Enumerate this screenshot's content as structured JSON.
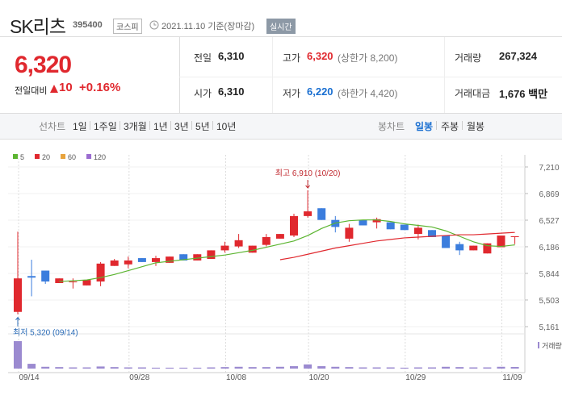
{
  "header": {
    "name": "SK리츠",
    "code": "395400",
    "market": "코스피",
    "date": "2021.11.10 기준(장마감)",
    "realtime": "실시간"
  },
  "quote": {
    "price": "6,320",
    "change_label": "전일대비",
    "change": "10",
    "change_pct": "+0.16%",
    "color": "#e0282e"
  },
  "stats": [
    {
      "label": "전일",
      "value": "6,310",
      "color": "#222222"
    },
    {
      "label": "고가",
      "value": "6,320",
      "note": "(상한가 8,200)",
      "color": "#e0282e"
    },
    {
      "label": "거래량",
      "value": "267,324",
      "color": "#222222"
    },
    {
      "label": "시가",
      "value": "6,310",
      "color": "#222222"
    },
    {
      "label": "저가",
      "value": "6,220",
      "note": "(하한가 4,420)",
      "color": "#1a6fd1"
    },
    {
      "label": "거래대금",
      "value": "1,676 백만",
      "color": "#222222"
    }
  ],
  "tabs": {
    "line_label": "선차트",
    "line_periods": [
      "1일",
      "1주일",
      "3개월",
      "1년",
      "3년",
      "5년",
      "10년"
    ],
    "candle_label": "봉차트",
    "candle_periods": [
      "일봉",
      "주봉",
      "월봉"
    ],
    "selected_candle_period": 0
  },
  "chart_data": {
    "type": "candlestick",
    "categories": [
      "09/14",
      null,
      null,
      null,
      null,
      null,
      null,
      null,
      "09/28",
      null,
      null,
      null,
      null,
      null,
      null,
      "10/08",
      null,
      null,
      null,
      null,
      null,
      "10/20",
      null,
      null,
      null,
      null,
      null,
      null,
      "10/29",
      null,
      null,
      null,
      null,
      null,
      null,
      "11/09",
      null
    ],
    "open": [
      5350,
      5810,
      5880,
      5720,
      5730,
      5690,
      5740,
      5940,
      5960,
      6040,
      5990,
      5980,
      6090,
      6010,
      6030,
      6140,
      6190,
      6110,
      6210,
      6290,
      6330,
      6580,
      6680,
      6530,
      6290,
      6530,
      6500,
      6500,
      6470,
      6350,
      6400,
      6330,
      6220,
      6140,
      6100,
      6180,
      6310
    ],
    "high": [
      6380,
      6020,
      5880,
      5780,
      5780,
      5760,
      5990,
      6030,
      6060,
      6040,
      6070,
      6060,
      6090,
      6090,
      6140,
      6250,
      6350,
      6200,
      6350,
      6350,
      6610,
      6910,
      6680,
      6580,
      6480,
      6530,
      6560,
      6500,
      6470,
      6470,
      6400,
      6330,
      6250,
      6200,
      6230,
      6330,
      6320
    ],
    "low": [
      5320,
      5550,
      5710,
      5720,
      5650,
      5690,
      5680,
      5940,
      5910,
      5990,
      5940,
      5980,
      6010,
      6010,
      6030,
      6110,
      6170,
      6110,
      6190,
      6290,
      6310,
      6560,
      6530,
      6370,
      6250,
      6460,
      6420,
      6410,
      6400,
      6280,
      6310,
      6170,
      6080,
      6140,
      6100,
      6180,
      6220
    ],
    "close": [
      5780,
      5790,
      5740,
      5780,
      5740,
      5760,
      5970,
      6010,
      6010,
      5990,
      6040,
      6060,
      6010,
      6090,
      6140,
      6200,
      6270,
      6200,
      6310,
      6350,
      6580,
      6640,
      6530,
      6440,
      6430,
      6460,
      6540,
      6410,
      6400,
      6430,
      6310,
      6170,
      6140,
      6200,
      6230,
      6330,
      6320
    ],
    "up_color": "#e0282e",
    "down_color": "#3b7ddd",
    "ylim": [
      5161,
      7210
    ],
    "yticks": [
      {
        "value": 5161,
        "label": "5,161"
      },
      {
        "value": 5503,
        "label": "5,503"
      },
      {
        "value": 5844,
        "label": "5,844"
      },
      {
        "value": 6186,
        "label": "6,186"
      },
      {
        "value": 6527,
        "label": "6,527"
      },
      {
        "value": 6869,
        "label": "6,869"
      },
      {
        "value": 7210,
        "label": "7,210"
      }
    ],
    "grid": true,
    "moving_averages": [
      {
        "name": "5",
        "color": "#5cb531",
        "values": [
          null,
          null,
          null,
          5740,
          5750,
          5760,
          5790,
          5830,
          5880,
          5930,
          5980,
          6000,
          6020,
          6040,
          6060,
          6080,
          6110,
          6140,
          6180,
          6220,
          6260,
          6330,
          6420,
          6490,
          6520,
          6530,
          6530,
          6510,
          6480,
          6460,
          6440,
          6390,
          6320,
          6250,
          6200,
          6190,
          6210
        ]
      },
      {
        "name": "20",
        "color": "#e0282e",
        "values": [
          null,
          null,
          null,
          null,
          null,
          null,
          null,
          null,
          null,
          null,
          null,
          null,
          null,
          null,
          null,
          null,
          null,
          null,
          null,
          6020,
          6050,
          6090,
          6130,
          6170,
          6200,
          6230,
          6260,
          6280,
          6300,
          6310,
          6320,
          6330,
          6340,
          6340,
          6350,
          6360,
          6370
        ]
      },
      {
        "name": "60",
        "color": "#e8a33c"
      },
      {
        "name": "120",
        "color": "#9b6cd0"
      }
    ],
    "annotations": {
      "high": "최고 6,910 (10/20)",
      "low": "최저 5,320 (09/14)",
      "high_color": "#c0282e",
      "low_color": "#2b6cb8"
    },
    "volume": {
      "label": "거래량",
      "color": "#9b8ad0",
      "ylim": [
        0,
        5000000
      ],
      "values": [
        4600000,
        800000,
        300000,
        250000,
        200000,
        200000,
        350000,
        250000,
        200000,
        200000,
        150000,
        150000,
        150000,
        150000,
        200000,
        250000,
        300000,
        250000,
        250000,
        300000,
        400000,
        700000,
        400000,
        300000,
        250000,
        200000,
        200000,
        200000,
        150000,
        200000,
        200000,
        300000,
        250000,
        200000,
        200000,
        300000,
        267324
      ]
    }
  }
}
